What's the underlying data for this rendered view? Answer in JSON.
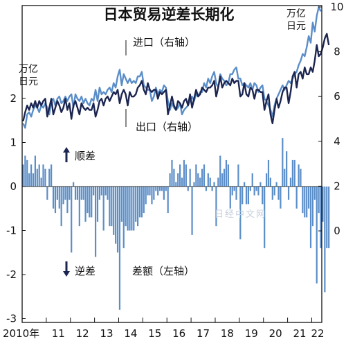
{
  "chart_data": {
    "type": "bar+line",
    "title": "日本贸易逆差长期化",
    "watermark": "日经中文网",
    "left_axis": {
      "unit": "万亿\n日元",
      "ticks": [
        "2",
        "1",
        "0",
        "-1",
        "-2",
        "-3"
      ],
      "ylim": [
        -3,
        2
      ]
    },
    "right_axis": {
      "unit": "万亿\n日元",
      "ticks": [
        "10",
        "8",
        "6",
        "4",
        "2",
        "0"
      ],
      "ylim": [
        0,
        10
      ]
    },
    "x_ticks": [
      "2010年",
      "11",
      "12",
      "13",
      "14",
      "15",
      "16",
      "17",
      "18",
      "19",
      "20",
      "21",
      "22"
    ],
    "annotations": {
      "imports": "进口（右轴）",
      "exports": "出口（右轴）",
      "surplus": "顺差",
      "deficit": "逆差",
      "balance": "差额（左轴）"
    },
    "colors": {
      "imports": "#5b8ec8",
      "exports": "#1b2550",
      "balance": "#5b8ec8",
      "axis": "#111111"
    },
    "series": [
      {
        "name": "进口（右轴）",
        "axis": "right",
        "values": [
          4.8,
          4.6,
          5.2,
          5.3,
          5.1,
          5.4,
          5.6,
          5.5,
          5.3,
          5.6,
          5.5,
          5.7,
          5.5,
          5.2,
          5.8,
          5.9,
          5.6,
          5.9,
          6.0,
          5.7,
          5.8,
          6.0,
          5.8,
          6.0,
          6.1,
          5.5,
          6.1,
          5.9,
          5.8,
          6.0,
          5.7,
          5.9,
          5.7,
          5.6,
          5.9,
          5.8,
          6.3,
          5.8,
          6.4,
          6.1,
          6.2,
          6.1,
          6.3,
          6.4,
          6.2,
          6.6,
          6.4,
          6.9,
          7.2,
          6.5,
          7.0,
          6.8,
          6.6,
          6.8,
          6.6,
          6.7,
          6.6,
          6.9,
          6.9,
          7.1,
          6.5,
          6.4,
          6.3,
          6.3,
          5.8,
          6.0,
          6.4,
          6.1,
          6.3,
          6.2,
          6.5,
          6.4,
          5.8,
          5.4,
          5.7,
          5.5,
          5.4,
          5.5,
          5.7,
          5.2,
          5.4,
          5.5,
          5.6,
          5.8,
          6.0,
          5.8,
          6.1,
          6.0,
          6.2,
          6.2,
          6.6,
          6.4,
          6.8,
          6.6,
          6.9,
          7.1,
          6.6,
          6.4,
          7.0,
          6.8,
          6.7,
          6.5,
          6.6,
          7.0,
          7.0,
          7.2,
          7.3,
          6.8,
          6.8,
          6.5,
          6.6,
          6.5,
          6.4,
          6.6,
          6.3,
          6.6,
          6.5,
          6.2,
          6.4,
          6.5,
          5.9,
          5.8,
          5.6,
          5.4,
          5.1,
          5.6,
          5.9,
          6.1,
          6.3,
          6.5,
          6.3,
          6.5,
          6.7,
          6.6,
          6.8,
          7.0,
          7.1,
          7.4,
          7.6,
          7.9,
          7.8,
          8.2,
          8.7,
          8.4,
          9.3,
          8.9,
          9.6,
          10.0,
          9.8
        ]
      },
      {
        "name": "出口（右轴）",
        "axis": "right",
        "values": [
          4.9,
          5.3,
          5.6,
          5.4,
          5.7,
          5.5,
          5.8,
          5.5,
          5.8,
          5.6,
          5.8,
          5.9,
          5.1,
          5.5,
          5.9,
          5.2,
          5.5,
          5.8,
          5.6,
          5.3,
          5.5,
          5.9,
          5.4,
          5.7,
          5.0,
          5.6,
          5.8,
          5.5,
          5.2,
          5.7,
          5.5,
          5.4,
          5.5,
          5.4,
          5.4,
          5.7,
          5.1,
          5.4,
          5.8,
          5.9,
          5.6,
          5.9,
          6.0,
          5.8,
          6.0,
          6.2,
          6.1,
          6.3,
          5.7,
          6.1,
          6.3,
          6.1,
          5.6,
          6.2,
          6.0,
          6.0,
          6.1,
          6.4,
          6.5,
          6.7,
          6.3,
          6.1,
          6.6,
          6.3,
          6.2,
          6.3,
          6.3,
          5.9,
          6.2,
          6.1,
          6.2,
          6.3,
          5.2,
          5.6,
          6.0,
          5.6,
          5.4,
          5.8,
          5.7,
          5.5,
          5.8,
          5.9,
          5.6,
          6.1,
          5.5,
          5.9,
          6.3,
          6.0,
          6.1,
          6.4,
          6.3,
          6.2,
          6.4,
          6.4,
          6.5,
          6.7,
          6.0,
          6.4,
          6.9,
          6.4,
          6.6,
          6.7,
          6.6,
          6.5,
          6.8,
          6.6,
          6.7,
          6.7,
          6.0,
          6.1,
          6.6,
          6.1,
          6.0,
          6.4,
          6.3,
          5.9,
          6.3,
          6.3,
          6.2,
          6.2,
          5.4,
          5.8,
          6.1,
          5.2,
          4.8,
          5.4,
          5.9,
          5.5,
          5.8,
          6.2,
          6.4,
          6.4,
          5.7,
          6.2,
          6.9,
          7.1,
          6.4,
          7.0,
          7.1,
          6.8,
          7.3,
          7.0,
          7.0,
          7.3,
          7.1,
          7.6,
          8.3,
          7.8,
          7.9,
          8.2,
          8.6,
          8.8,
          8.3
        ]
      },
      {
        "name": "差额（左轴）",
        "axis": "left",
        "type": "bar",
        "values": [
          0.5,
          0.7,
          0.6,
          0.3,
          0.5,
          0.3,
          0.7,
          0.4,
          0.5,
          0.2,
          0.5,
          0.4,
          -0.3,
          0.4,
          0.5,
          -0.5,
          -0.6,
          -0.3,
          -0.5,
          -0.9,
          -0.4,
          -0.3,
          -0.6,
          -0.3,
          -1.5,
          0.1,
          -0.3,
          -0.3,
          -0.9,
          -0.3,
          -0.3,
          -0.8,
          -0.6,
          -0.7,
          -0.7,
          -0.2,
          -1.6,
          -0.8,
          -0.3,
          -0.2,
          -1.0,
          -0.2,
          -0.3,
          -0.9,
          -0.9,
          -1.1,
          -1.3,
          -1.5,
          -2.8,
          -0.8,
          -1.4,
          -0.9,
          -1.0,
          -1.0,
          -1.0,
          -1.0,
          -0.8,
          -0.9,
          -0.7,
          -0.7,
          -0.6,
          -0.4,
          -0.2,
          -0.2,
          -0.4,
          -0.3,
          -0.1,
          -0.2,
          -0.1,
          -0.1,
          -0.3,
          -0.1,
          -0.6,
          0.3,
          0.6,
          0.4,
          0.1,
          0.3,
          0.5,
          0.2,
          0.6,
          0.5,
          -0.1,
          0.4,
          -1.1,
          0.1,
          0.5,
          0.3,
          0.2,
          0.4,
          0.5,
          -0.1,
          0.3,
          0.2,
          -0.1,
          0.1,
          -0.9,
          0.2,
          0.7,
          0.3,
          0.4,
          0.6,
          0.5,
          -0.5,
          -0.2,
          -0.1,
          -0.3,
          0.5,
          -1.2,
          -0.4,
          0.1,
          -0.4,
          -0.4,
          -0.1,
          0.3,
          -0.2,
          -0.1,
          -0.2,
          0.1,
          -0.4,
          -1.4,
          0.3,
          0.6,
          0.2,
          -0.3,
          -0.2,
          0.1,
          -0.3,
          -0.5,
          1.1,
          0.4,
          0.8,
          -0.3,
          0.2,
          0.6,
          0.6,
          -0.5,
          0.5,
          0.4,
          -0.6,
          -0.7,
          -0.7,
          -0.5,
          -1.4,
          -0.9,
          -0.3,
          -2.2,
          -0.6,
          -1.4,
          -0.8,
          -2.4,
          -1.4,
          -1.4
        ]
      }
    ]
  }
}
